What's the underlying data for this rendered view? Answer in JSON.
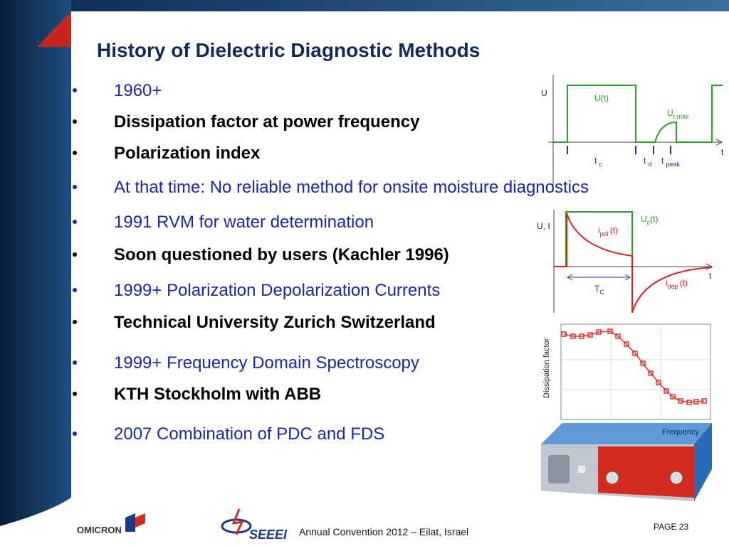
{
  "title": "History of Dielectric Diagnostic Methods",
  "bullets": [
    {
      "text": "1960+",
      "style": "blue"
    },
    {
      "text": "Dissipation factor at power frequency",
      "style": "bold"
    },
    {
      "text": "Polarization index",
      "style": "bold"
    },
    {
      "text": "At that time: No reliable method for onsite moisture diagnostics",
      "style": "blue"
    },
    {
      "text": "1991 RVM for water determination",
      "style": "blue"
    },
    {
      "text": "Soon questioned by users (Kachler 1996)",
      "style": "bold"
    },
    {
      "text": "1999+ Polarization Depolarization Currents",
      "style": "blue"
    },
    {
      "text": "Technical University Zurich Switzerland",
      "style": "bold"
    },
    {
      "text": "1999+ Frequency Domain Spectroscopy",
      "style": "blue"
    },
    {
      "text": "KTH Stockholm with ABB",
      "style": "bold"
    },
    {
      "text": "2007 Combination of PDC and FDS",
      "style": "blue"
    }
  ],
  "rvm_diagram": {
    "y_label": "U",
    "x_label": "t",
    "curve_label": "U(t)",
    "peak_label": {
      "main": "U",
      "sub": "r,max"
    },
    "tc": {
      "main": "t",
      "sub": "c"
    },
    "td": {
      "main": "t",
      "sub": "d"
    },
    "tpeak": {
      "main": "t",
      "sub": "peak"
    }
  },
  "pdc_diagram": {
    "y_label": "U, I",
    "x_label": "t",
    "voltage": {
      "main": "U",
      "sub": "c",
      "suffix": "(t)"
    },
    "pol": {
      "main": "i",
      "sub": "pol",
      "suffix": "(t)"
    },
    "dep": {
      "main": "i",
      "sub": "dep",
      "suffix": "(t)"
    },
    "tc": {
      "main": "T",
      "sub": "C"
    }
  },
  "fds_plot": {
    "y_label": "Dissipation factor",
    "x_label": "Frequency"
  },
  "footer": {
    "omicron": "OMICRON",
    "seeei": "SEEEI",
    "event": "Annual Convention 2012 – Eilat, Israel",
    "page": "PAGE 23"
  }
}
